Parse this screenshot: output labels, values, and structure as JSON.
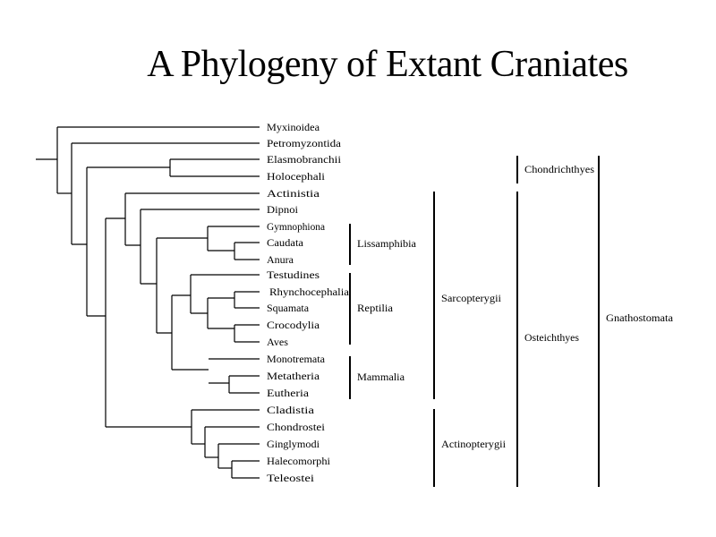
{
  "title": "A Phylogeny of Extant Craniates",
  "taxa": [
    "Myxinoidea",
    "Petromyzontida",
    "Elasmobranchii",
    "Holocephali",
    "Actinistia",
    "Dipnoi",
    "Gymnophiona",
    "Caudata",
    "Anura",
    "Testudines",
    "Rhynchocephalia",
    "Squamata",
    "Crocodylia",
    "Aves",
    "Monotremata",
    "Metatheria",
    "Eutheria",
    "Cladistia",
    "Chondrostei",
    "Ginglymodi",
    "Halecomorphi",
    "Teleostei"
  ],
  "groups": {
    "lissamphibia": "Lissamphibia",
    "reptilia": "Reptilia",
    "mammalia": "Mammalia",
    "sarcopterygii": "Sarcopterygii",
    "actinopterygii": "Actinopterygii",
    "chondrichthyes": "Chondrichthyes",
    "osteichthyes": "Osteichthyes",
    "gnathostomata": "Gnathostomata"
  },
  "line_color": "#000000"
}
